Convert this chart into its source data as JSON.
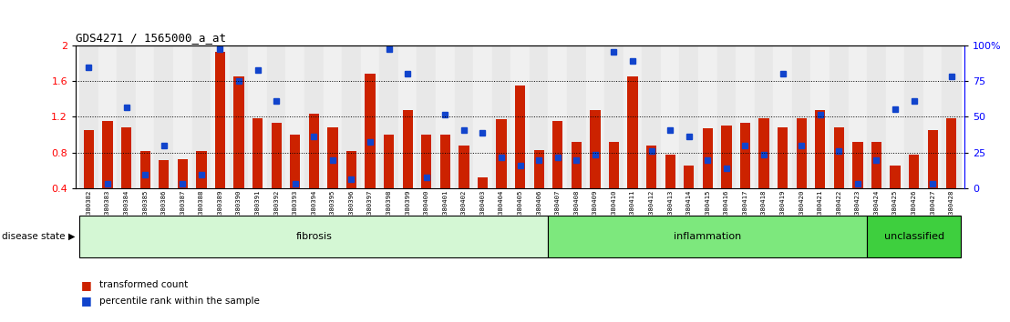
{
  "title": "GDS4271 / 1565000_a_at",
  "categories": [
    "GSM380382",
    "GSM380383",
    "GSM380384",
    "GSM380385",
    "GSM380386",
    "GSM380387",
    "GSM380388",
    "GSM380389",
    "GSM380390",
    "GSM380391",
    "GSM380392",
    "GSM380393",
    "GSM380394",
    "GSM380395",
    "GSM380396",
    "GSM380397",
    "GSM380398",
    "GSM380399",
    "GSM380400",
    "GSM380401",
    "GSM380402",
    "GSM380403",
    "GSM380404",
    "GSM380405",
    "GSM380406",
    "GSM380407",
    "GSM380408",
    "GSM380409",
    "GSM380410",
    "GSM380411",
    "GSM380412",
    "GSM380413",
    "GSM380414",
    "GSM380415",
    "GSM380416",
    "GSM380417",
    "GSM380418",
    "GSM380419",
    "GSM380420",
    "GSM380421",
    "GSM380422",
    "GSM380423",
    "GSM380424",
    "GSM380425",
    "GSM380426",
    "GSM380427",
    "GSM380428"
  ],
  "bar_values": [
    1.05,
    1.15,
    1.08,
    0.82,
    0.72,
    0.73,
    0.82,
    1.92,
    1.65,
    1.18,
    1.13,
    1.0,
    1.23,
    1.08,
    0.82,
    1.68,
    1.0,
    1.27,
    1.0,
    1.0,
    0.88,
    0.52,
    1.17,
    1.55,
    0.83,
    1.15,
    0.92,
    1.27,
    0.92,
    1.65,
    0.88,
    0.78,
    0.65,
    1.07,
    1.1,
    1.13,
    1.18,
    1.08,
    1.18,
    1.27,
    1.08,
    0.92,
    0.92,
    0.65,
    0.78,
    1.05,
    1.18
  ],
  "percentile_values": [
    1.75,
    0.45,
    1.3,
    0.55,
    0.88,
    0.45,
    0.55,
    1.95,
    1.6,
    1.72,
    1.38,
    0.45,
    0.98,
    0.72,
    0.5,
    0.92,
    1.95,
    1.68,
    0.52,
    1.22,
    1.05,
    1.02,
    0.75,
    0.65,
    0.72,
    0.75,
    0.72,
    0.78,
    1.92,
    1.82,
    0.82,
    1.05,
    0.98,
    0.72,
    0.62,
    0.88,
    0.78,
    1.68,
    0.88,
    1.22,
    0.82,
    0.45,
    0.72,
    1.28,
    1.38,
    0.45,
    1.65
  ],
  "bar_color": "#cc2200",
  "percentile_color": "#1144cc",
  "groups": [
    {
      "label": "fibrosis",
      "start": 0,
      "end": 25,
      "color": "#d4f7d4"
    },
    {
      "label": "inflammation",
      "start": 25,
      "end": 42,
      "color": "#7de87d"
    },
    {
      "label": "unclassified",
      "start": 42,
      "end": 47,
      "color": "#3ecf3e"
    }
  ],
  "ylim": [
    0.4,
    2.0
  ],
  "yticks": [
    0.4,
    0.8,
    1.2,
    1.6,
    2.0
  ],
  "ytick_labels_left": [
    "0.4",
    "0.8",
    "1.2",
    "1.6",
    "2"
  ],
  "ytick_labels_right": [
    "0",
    "25",
    "50",
    "75",
    "100%"
  ],
  "dotted_lines": [
    0.8,
    1.2,
    1.6
  ],
  "col_colors": [
    "#e8e8e8",
    "#f0f0f0"
  ]
}
